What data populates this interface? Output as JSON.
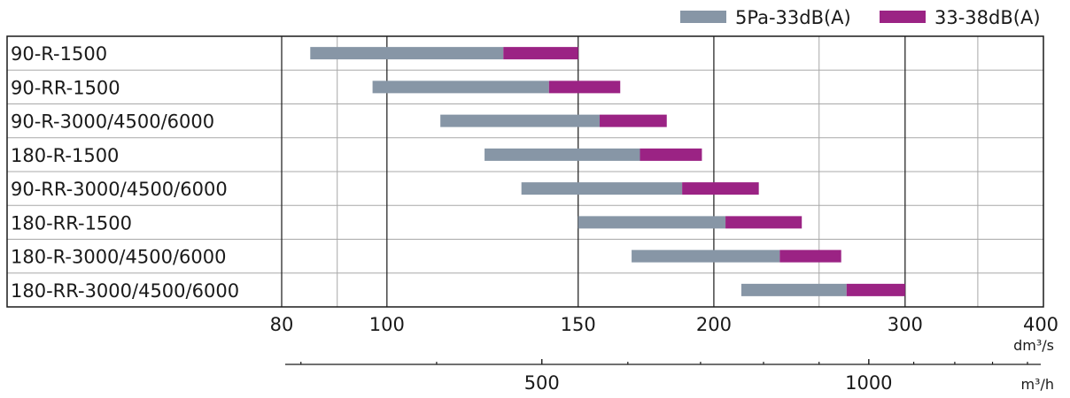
{
  "chart_data": {
    "type": "bar",
    "orientation": "horizontal-range",
    "x_scale": "log",
    "categories": [
      "90-R-1500",
      "90-RR-1500",
      "90-R-3000/4500/6000",
      "180-R-1500",
      "90-RR-3000/4500/6000",
      "180-RR-1500",
      "180-R-3000/4500/6000",
      "180-RR-3000/4500/6000"
    ],
    "series": [
      {
        "name": "5Pa-33dB(A)",
        "color": "#8796a6",
        "ranges": [
          [
            85,
            128
          ],
          [
            97,
            141
          ],
          [
            112,
            157
          ],
          [
            123,
            171
          ],
          [
            133,
            187
          ],
          [
            150,
            205
          ],
          [
            168,
            230
          ],
          [
            212,
            265
          ]
        ]
      },
      {
        "name": "33-38dB(A)",
        "color": "#9b2384",
        "ranges": [
          [
            128,
            150
          ],
          [
            141,
            164
          ],
          [
            157,
            181
          ],
          [
            171,
            195
          ],
          [
            187,
            220
          ],
          [
            205,
            241
          ],
          [
            230,
            262
          ],
          [
            265,
            300
          ]
        ]
      }
    ],
    "x_axis": {
      "unit": "dm³/s",
      "ticks": [
        80,
        100,
        150,
        200,
        300,
        400
      ],
      "minor_ticks": [
        90,
        250,
        350
      ],
      "lim": [
        80,
        400
      ]
    },
    "x2_axis": {
      "unit": "m³/h",
      "ticks": [
        500,
        1000
      ],
      "minor_ticks": [
        300,
        400,
        600,
        700,
        800,
        900,
        1100,
        1200,
        1300,
        1400
      ]
    },
    "grid": true,
    "legend_position": "top-right"
  }
}
